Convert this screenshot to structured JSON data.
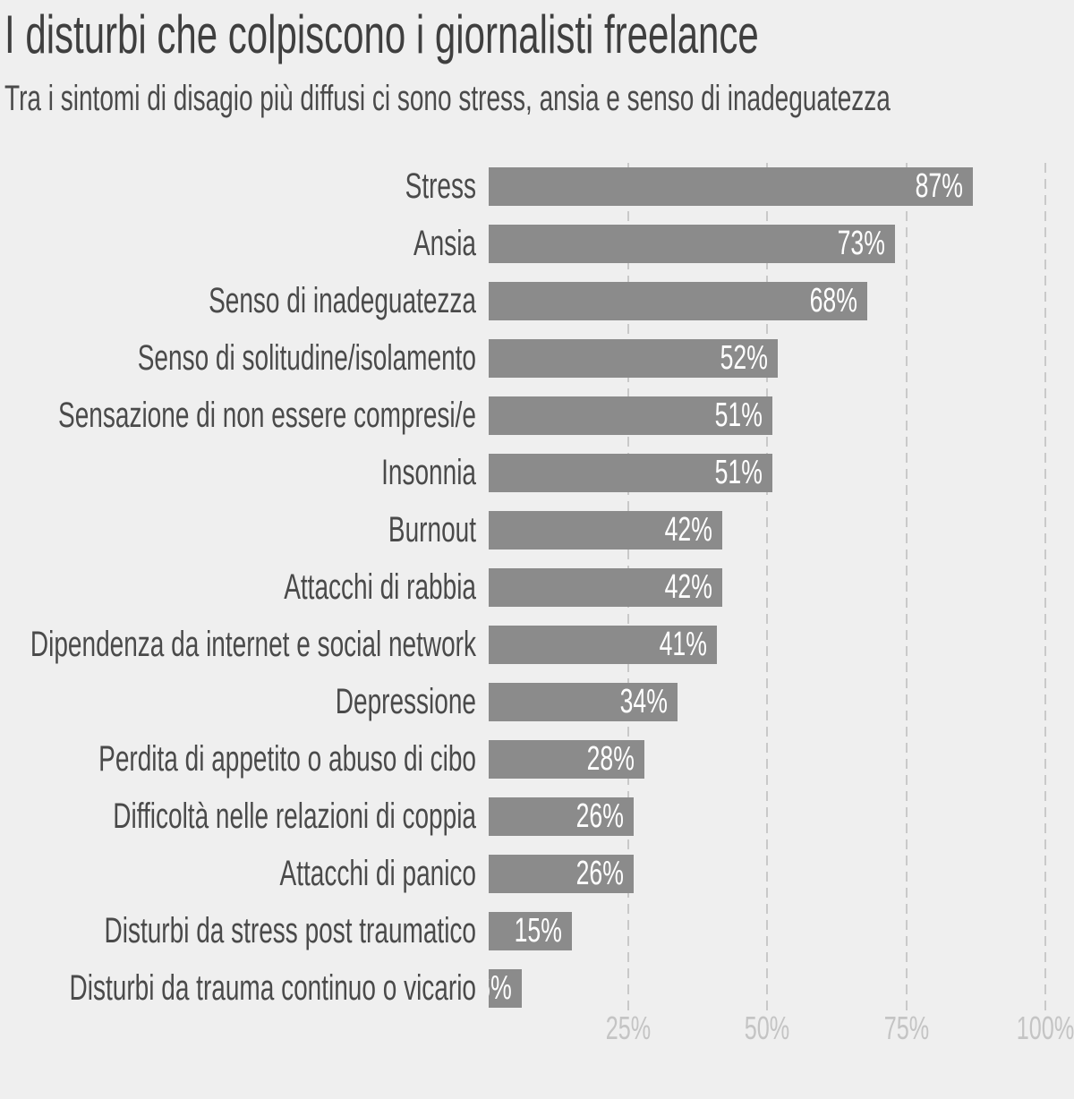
{
  "chart_data": {
    "type": "bar",
    "orientation": "horizontal",
    "title": "I disturbi che colpiscono i giornalisti freelance",
    "subtitle": "Tra i sintomi di disagio più diffusi ci sono stress, ansia e senso di inadeguatezza",
    "categories": [
      "Stress",
      "Ansia",
      "Senso di inadeguatezza",
      "Senso di solitudine/isolamento",
      "Sensazione di non essere compresi/e",
      "Insonnia",
      "Burnout",
      "Attacchi di rabbia",
      "Dipendenza da internet e social network",
      "Depressione",
      "Perdita di appetito o abuso di cibo",
      "Difficoltà nelle relazioni di coppia",
      "Attacchi di panico",
      "Disturbi da stress post traumatico",
      "Disturbi da trauma continuo o vicario"
    ],
    "values": [
      87,
      73,
      68,
      52,
      51,
      51,
      42,
      42,
      41,
      34,
      28,
      26,
      26,
      15,
      6
    ],
    "value_suffix": "%",
    "value_label_position": "inside-end",
    "x_ticks": [
      "25%",
      "50%",
      "75%",
      "100%"
    ],
    "xlim": [
      0,
      100
    ],
    "grid": "vertical-dashed",
    "legend": "none"
  },
  "colors": {
    "background": "#efefef",
    "bar": "#8b8b8b",
    "title": "#3f3f3f",
    "subtitle": "#4a4a4a",
    "label": "#4a4a4a",
    "value_label": "#ffffff",
    "tick": "#c4c4c4",
    "gridline": "#c9c9c9"
  }
}
